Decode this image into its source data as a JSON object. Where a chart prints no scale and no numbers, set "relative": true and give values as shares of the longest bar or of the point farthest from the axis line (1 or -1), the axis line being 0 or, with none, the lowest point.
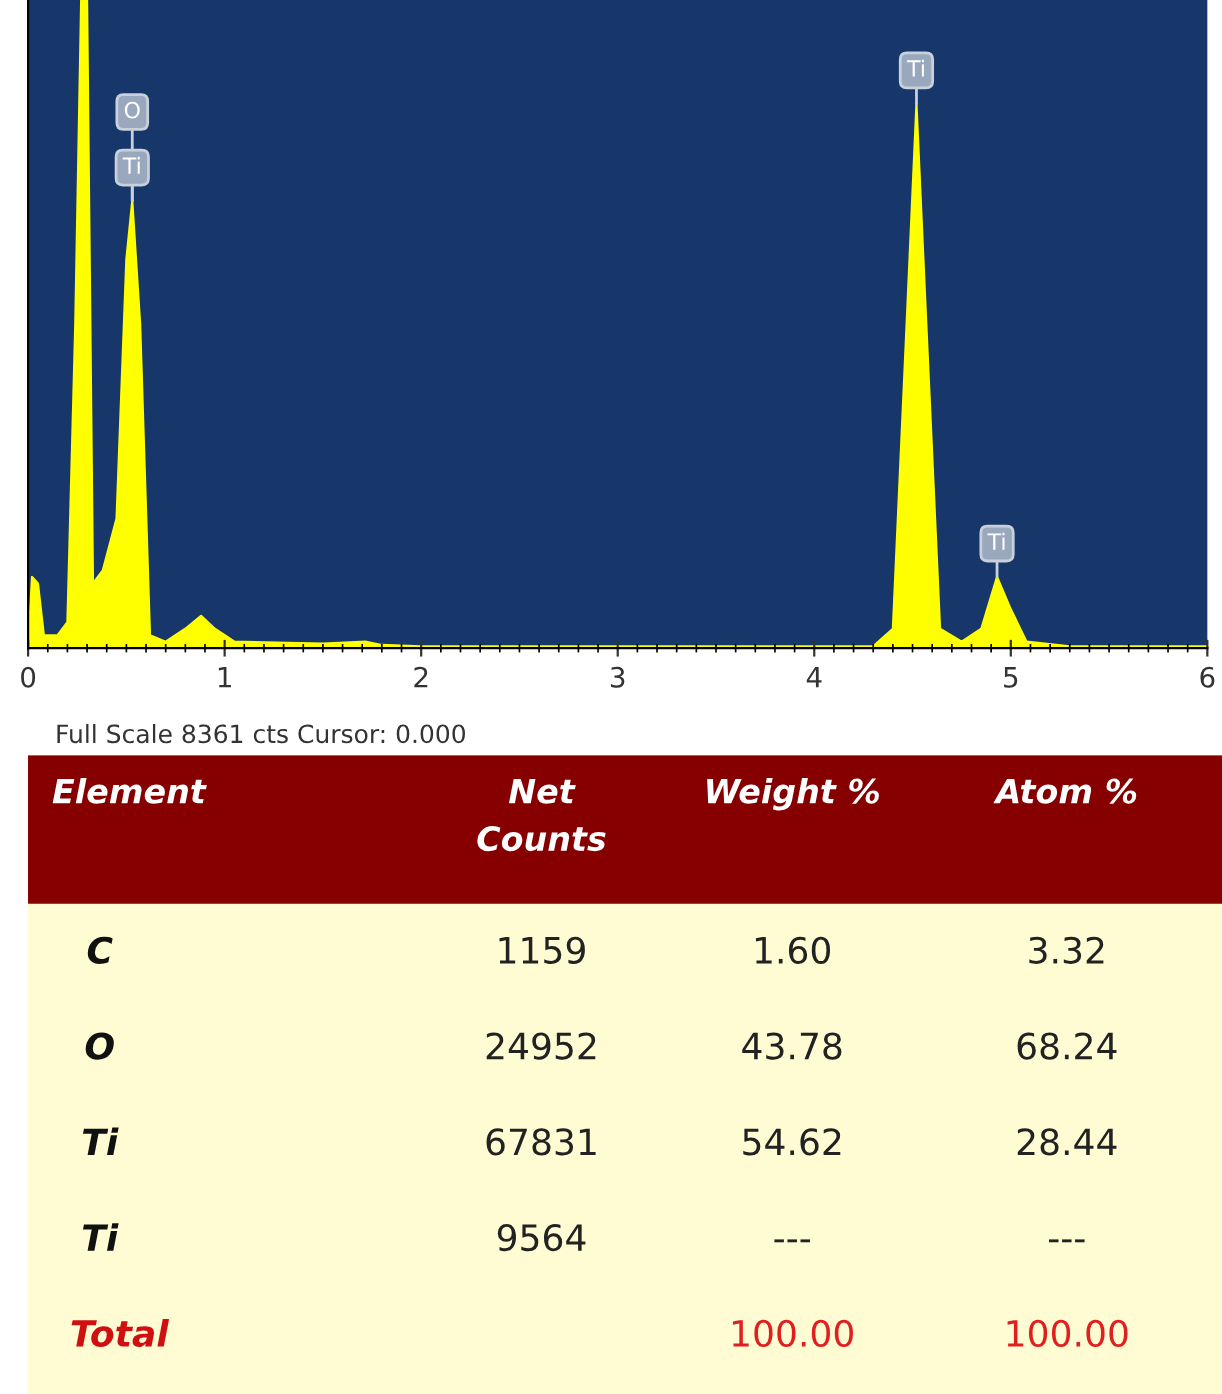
{
  "chart_data": [
    {
      "type": "area",
      "relative": true,
      "color": "#ffff00",
      "x": [
        0.0,
        0.02,
        0.05,
        0.08,
        0.15,
        0.2,
        0.24,
        0.27,
        0.3,
        0.33,
        0.38,
        0.45,
        0.5,
        0.53,
        0.57,
        0.62,
        0.7,
        0.8,
        0.88,
        0.95,
        1.05,
        1.5,
        1.72,
        1.8,
        2.0,
        4.3,
        4.4,
        4.47,
        4.52,
        4.57,
        4.64,
        4.75,
        4.85,
        4.93,
        5.0,
        5.08,
        5.3,
        6.0
      ],
      "values": [
        0.0,
        0.11,
        0.1,
        0.02,
        0.02,
        0.04,
        0.5,
        1.0,
        1.0,
        0.1,
        0.12,
        0.2,
        0.6,
        0.69,
        0.5,
        0.02,
        0.01,
        0.03,
        0.05,
        0.03,
        0.01,
        0.007,
        0.01,
        0.005,
        0.003,
        0.003,
        0.03,
        0.5,
        0.84,
        0.5,
        0.03,
        0.01,
        0.03,
        0.11,
        0.06,
        0.01,
        0.003,
        0.003
      ],
      "xlim": [
        0,
        6
      ],
      "xticks": [
        0,
        1,
        2,
        3,
        4,
        5,
        6
      ],
      "annotations": [
        {
          "text": "Ti",
          "x": 0.53,
          "y": 0.69
        },
        {
          "text": "O",
          "x": 0.53,
          "y": 0.69
        },
        {
          "text": "Ti",
          "x": 4.52,
          "y": 0.84
        },
        {
          "text": "Ti",
          "x": 4.93,
          "y": 0.11
        },
        "Full Scale 8361 cts Cursor: 0.000"
      ]
    },
    {
      "type": "other",
      "categories": [
        "Element",
        "Net\nCounts",
        "Weight %",
        "Atom %"
      ],
      "cell_labels": [
        [
          "C",
          "1159",
          "1.60",
          "3.32"
        ],
        [
          "O",
          "24952",
          "43.78",
          "68.24"
        ],
        [
          "Ti",
          "67831",
          "54.62",
          "28.44"
        ],
        [
          "Ti",
          "9564",
          "---",
          "---"
        ],
        [
          "Total",
          null,
          "100.00",
          "100.00"
        ]
      ]
    }
  ]
}
